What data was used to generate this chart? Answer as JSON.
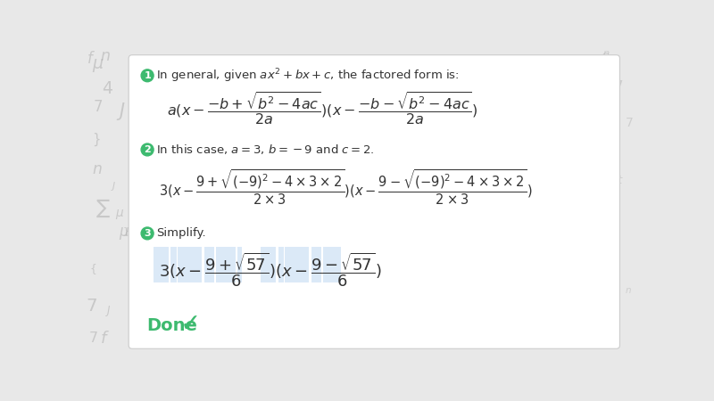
{
  "bg_color": "#e8e8e8",
  "card_color": "#ffffff",
  "math_bg_highlight": "#b8d4f0",
  "step_circle_color": "#3dba6f",
  "done_color": "#3dba6f",
  "text_color": "#333333",
  "step1_label": "1",
  "step1_text": "In general, given $ax^2 + bx + c$, the factored form is:",
  "step2_label": "2",
  "step2_text": "In this case, $a = 3$, $b = -9$ and $c = 2$.",
  "step3_label": "3",
  "step3_text": "Simplify.",
  "done_text": "Done"
}
